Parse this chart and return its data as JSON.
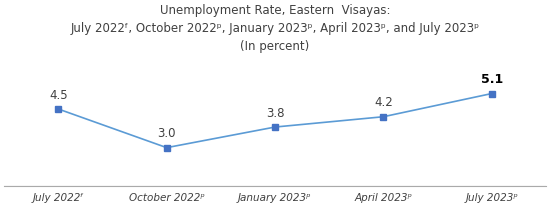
{
  "title_line1": "Unemployment Rate, Eastern  Visayas:",
  "title_line2": "July 2022ᶠ, October 2022ᵖ, January 2023ᵖ, April 2023ᵖ, and July 2023ᵖ",
  "title_line3": "(In percent)",
  "x_labels": [
    "July 2022ᶠ",
    "October 2022ᵖ",
    "January 2023ᵖ",
    "April 2023ᵖ",
    "July 2023ᵖ"
  ],
  "values": [
    4.5,
    3.0,
    3.8,
    4.2,
    5.1
  ],
  "line_color": "#5B9BD5",
  "marker_color": "#4472C4",
  "title_color": "#404040",
  "label_color": "#404040",
  "value_color": "#404040",
  "last_value_color": "#000000",
  "background_color": "#FFFFFF",
  "ylim": [
    1.5,
    6.5
  ],
  "figsize": [
    5.5,
    2.07
  ],
  "dpi": 100
}
